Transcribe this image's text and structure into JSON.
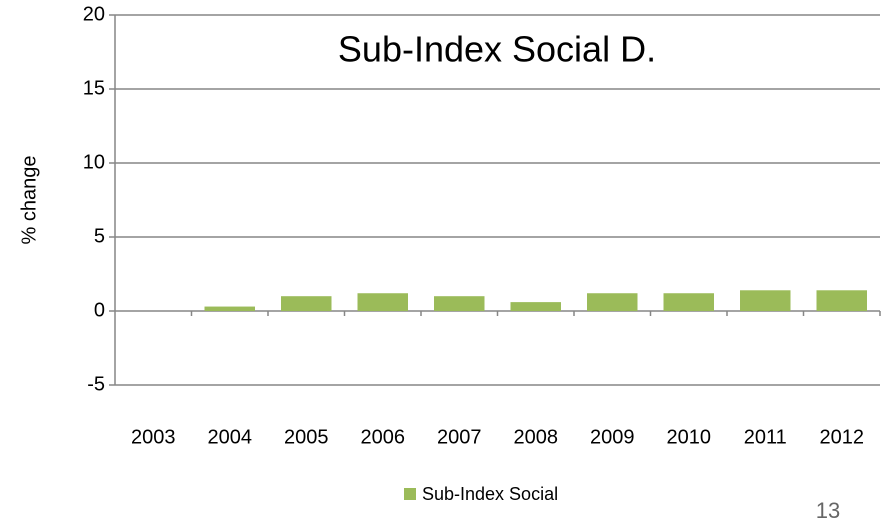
{
  "chart_data": {
    "type": "bar",
    "title": "Sub-Index Social D.",
    "y_label": "% change",
    "categories": [
      "2003",
      "2004",
      "2005",
      "2006",
      "2007",
      "2008",
      "2009",
      "2010",
      "2011",
      "2012"
    ],
    "series": [
      {
        "name": "Sub-Index Social",
        "color": "#9bbb59",
        "values": [
          0,
          0.3,
          1.0,
          1.2,
          1.0,
          0.6,
          1.2,
          1.2,
          1.4,
          1.4
        ]
      }
    ],
    "ylim": [
      -5,
      20
    ],
    "yticks": [
      -5,
      0,
      5,
      10,
      15,
      20
    ],
    "grid": true,
    "legend": "bottom"
  },
  "page_number": "13"
}
